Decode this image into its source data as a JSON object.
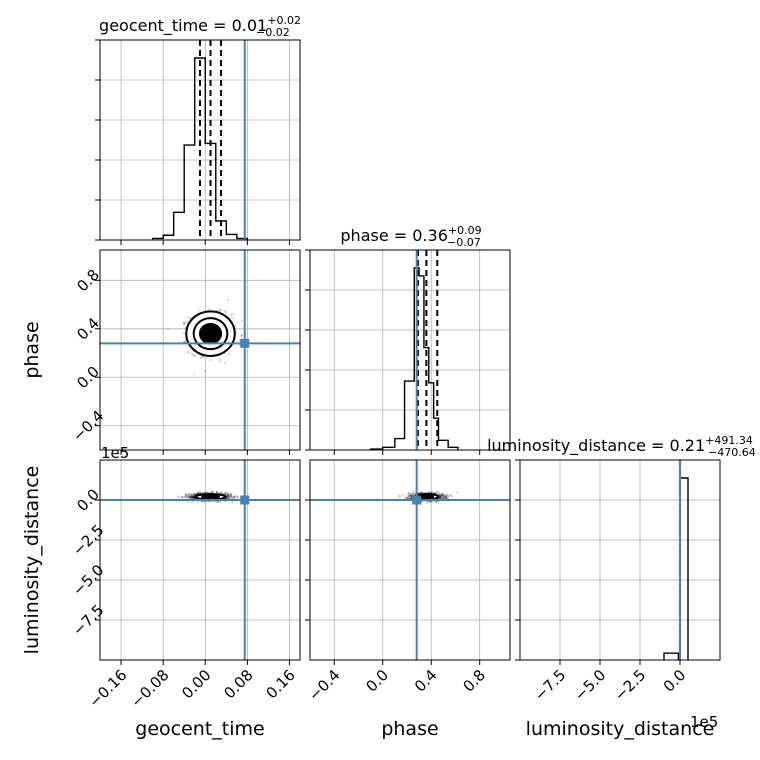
{
  "chart_data": {
    "type": "corner",
    "colors": {
      "truth": "#4682b4",
      "hist": "#000000",
      "grid": "#b0b0b0",
      "points": "#000000"
    },
    "params": [
      "geocent_time",
      "phase",
      "luminosity_distance"
    ],
    "axis_labels": {
      "x": [
        "geocent_time",
        "phase",
        "luminosity_distance"
      ],
      "y": [
        "phase",
        "luminosity_distance"
      ]
    },
    "titles": [
      {
        "param": "geocent_time",
        "text": "geocent_time = 0.01",
        "plus": "+0.02",
        "minus": "−0.02"
      },
      {
        "param": "phase",
        "text": "phase = 0.36",
        "plus": "+0.09",
        "minus": "−0.07"
      },
      {
        "param": "luminosity_distance",
        "text": "luminosity_distance = 0.21",
        "plus": "+491.34",
        "minus": "−470.64"
      }
    ],
    "ranges": {
      "geocent_time": [
        -0.2,
        0.18
      ],
      "phase": [
        -0.6,
        1.05
      ],
      "luminosity_distance": [
        -1000000,
        250000
      ]
    },
    "ticks": {
      "geocent_time": {
        "values": [
          -0.16,
          -0.08,
          0.0,
          0.08,
          0.16
        ],
        "labels": [
          "−0.16",
          "−0.08",
          "0.00",
          "0.08",
          "0.16"
        ]
      },
      "phase": {
        "values": [
          -0.4,
          0.0,
          0.4,
          0.8
        ],
        "labels": [
          "−0.4",
          "0.0",
          "0.4",
          "0.8"
        ]
      },
      "luminosity_distance": {
        "values": [
          -750000,
          -500000,
          -250000,
          0
        ],
        "labels": [
          "−7.5",
          "−5.0",
          "−2.5",
          "0.0"
        ]
      }
    },
    "offset_text": "1e5",
    "truths": {
      "geocent_time": 0.075,
      "phase": 0.28,
      "luminosity_distance": 0
    },
    "histograms": [
      {
        "param": "geocent_time",
        "edges": [
          -0.1,
          -0.08,
          -0.06,
          -0.04,
          -0.02,
          0.0,
          0.02,
          0.04,
          0.06,
          0.08
        ],
        "counts": [
          2,
          6,
          35,
          120,
          230,
          122,
          24,
          7,
          2
        ],
        "quantiles": [
          -0.01,
          0.01,
          0.03
        ]
      },
      {
        "param": "phase",
        "edges": [
          -0.1,
          0.0,
          0.1,
          0.18,
          0.26,
          0.3,
          0.34,
          0.38,
          0.42,
          0.46,
          0.54,
          0.62
        ],
        "counts": [
          1,
          3,
          13,
          78,
          206,
          197,
          116,
          76,
          36,
          11,
          3
        ],
        "quantiles": [
          0.29,
          0.36,
          0.45
        ]
      },
      {
        "param": "luminosity_distance",
        "edges": [
          -100000,
          -10000,
          0,
          50000
        ],
        "counts": [
          6,
          1,
          160
        ],
        "quantiles": [
          -470,
          0,
          500
        ]
      }
    ],
    "joint": [
      {
        "x": "geocent_time",
        "y": "phase",
        "center": [
          0.01,
          0.36
        ],
        "spread": [
          0.02,
          0.08
        ],
        "levels": [
          1.0,
          1.6,
          2.3
        ],
        "truth_marker": [
          0.075,
          0.28
        ]
      },
      {
        "x": "geocent_time",
        "y": "luminosity_distance",
        "center": [
          0.01,
          20000
        ],
        "spread": [
          0.02,
          12000
        ],
        "levels": [
          0.8,
          1.4
        ],
        "truth_marker": [
          0.075,
          0
        ]
      },
      {
        "x": "phase",
        "y": "luminosity_distance",
        "center": [
          0.36,
          20000
        ],
        "spread": [
          0.07,
          12000
        ],
        "levels": [
          0.8,
          1.4
        ],
        "truth_marker": [
          0.28,
          0
        ]
      }
    ]
  }
}
